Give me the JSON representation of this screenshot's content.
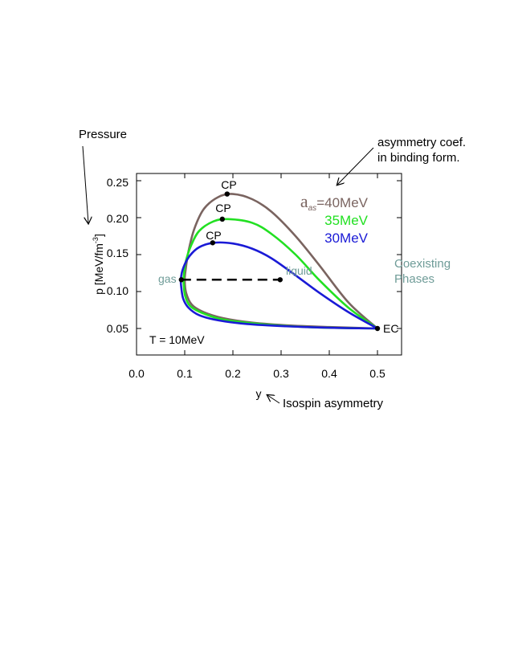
{
  "chart_data": {
    "type": "line",
    "xlabel": "y",
    "ylabel": "p  [MeV/fm",
    "ylabel_sup": "-3",
    "ylabel_close": "]",
    "xlim": [
      0.0,
      0.5
    ],
    "ylim": [
      0.03,
      0.26
    ],
    "x_ticks": [
      "0.0",
      "0.1",
      "0.2",
      "0.3",
      "0.4",
      "0.5"
    ],
    "y_ticks": [
      "0.05",
      "0.10",
      "0.15",
      "0.20",
      "0.25"
    ],
    "temperature_label": "T = 10MeV",
    "series": [
      {
        "name": "40MeV",
        "color": "#7a6460",
        "critical_point": {
          "x": 0.188,
          "y": 0.232,
          "label": "CP"
        },
        "upper": [
          [
            0.5,
            0.05
          ],
          [
            0.44,
            0.085
          ],
          [
            0.38,
            0.135
          ],
          [
            0.33,
            0.175
          ],
          [
            0.28,
            0.208
          ],
          [
            0.24,
            0.225
          ],
          [
            0.2,
            0.232
          ],
          [
            0.17,
            0.228
          ],
          [
            0.14,
            0.212
          ],
          [
            0.12,
            0.185
          ],
          [
            0.108,
            0.155
          ],
          [
            0.102,
            0.13
          ],
          [
            0.1,
            0.115
          ]
        ],
        "lower": [
          [
            0.1,
            0.115
          ],
          [
            0.103,
            0.098
          ],
          [
            0.115,
            0.082
          ],
          [
            0.14,
            0.072
          ],
          [
            0.18,
            0.064
          ],
          [
            0.24,
            0.058
          ],
          [
            0.32,
            0.054
          ],
          [
            0.4,
            0.052
          ],
          [
            0.5,
            0.05
          ]
        ]
      },
      {
        "name": "35MeV",
        "color": "#22e022",
        "critical_point": {
          "x": 0.178,
          "y": 0.198,
          "label": "CP"
        },
        "upper": [
          [
            0.5,
            0.05
          ],
          [
            0.44,
            0.078
          ],
          [
            0.38,
            0.115
          ],
          [
            0.33,
            0.15
          ],
          [
            0.28,
            0.178
          ],
          [
            0.24,
            0.193
          ],
          [
            0.19,
            0.198
          ],
          [
            0.16,
            0.195
          ],
          [
            0.13,
            0.182
          ],
          [
            0.113,
            0.162
          ],
          [
            0.102,
            0.14
          ],
          [
            0.098,
            0.12
          ],
          [
            0.098,
            0.11
          ]
        ],
        "lower": [
          [
            0.098,
            0.11
          ],
          [
            0.101,
            0.094
          ],
          [
            0.112,
            0.08
          ],
          [
            0.14,
            0.07
          ],
          [
            0.18,
            0.062
          ],
          [
            0.24,
            0.057
          ],
          [
            0.32,
            0.053
          ],
          [
            0.4,
            0.051
          ],
          [
            0.5,
            0.05
          ]
        ]
      },
      {
        "name": "30MeV",
        "color": "#1a1ad6",
        "critical_point": {
          "x": 0.158,
          "y": 0.166,
          "label": "CP"
        },
        "upper": [
          [
            0.5,
            0.05
          ],
          [
            0.44,
            0.072
          ],
          [
            0.38,
            0.098
          ],
          [
            0.33,
            0.122
          ],
          [
            0.28,
            0.145
          ],
          [
            0.24,
            0.158
          ],
          [
            0.2,
            0.165
          ],
          [
            0.16,
            0.166
          ],
          [
            0.13,
            0.16
          ],
          [
            0.11,
            0.148
          ],
          [
            0.097,
            0.132
          ],
          [
            0.092,
            0.117
          ],
          [
            0.093,
            0.105
          ]
        ],
        "lower": [
          [
            0.093,
            0.105
          ],
          [
            0.097,
            0.09
          ],
          [
            0.108,
            0.078
          ],
          [
            0.13,
            0.068
          ],
          [
            0.17,
            0.061
          ],
          [
            0.23,
            0.056
          ],
          [
            0.31,
            0.053
          ],
          [
            0.4,
            0.051
          ],
          [
            0.5,
            0.05
          ]
        ]
      }
    ],
    "tie_line": {
      "x1": 0.093,
      "x2": 0.298,
      "y": 0.116,
      "gas_label": "gas",
      "liquid_label": "liquid"
    },
    "endpoint": {
      "x": 0.5,
      "y": 0.05,
      "label": "EC"
    },
    "legend_prefix": "a",
    "legend_sub": "as",
    "legend_eq": "=",
    "colors": {
      "gas_liquid": "#6f9c98",
      "axis": "#000000"
    },
    "annotations": {
      "pressure": "Pressure",
      "asym_line1": "asymmetry coef.",
      "asym_line2": "in binding form.",
      "isospin": "Isospin asymmetry",
      "coexisting_line1": "Coexisting",
      "coexisting_line2": "Phases"
    }
  }
}
